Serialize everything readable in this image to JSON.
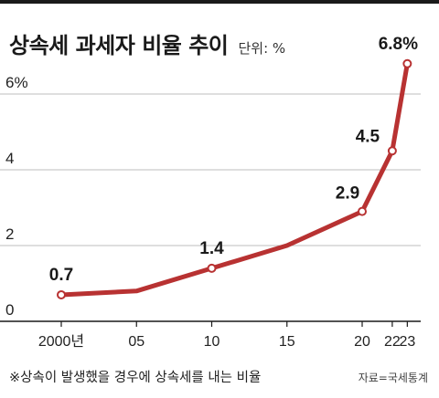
{
  "header": {
    "title": "상속세 과세자 비율 추이",
    "unit": "단위: %"
  },
  "footer": {
    "note": "※상속이 발생했을 경우에 상속세를 내는 비율",
    "source": "자료=국세통계"
  },
  "colors": {
    "line": "#b83232",
    "marker_fill": "#ffffff",
    "grid": "#bdbdbd",
    "axis": "#1a1a1a",
    "text": "#222222"
  },
  "chart_data": {
    "type": "line",
    "title": "상속세 과세자 비율 추이",
    "ylabel": "단위: %",
    "xlabel": "",
    "x": [
      2000,
      2005,
      2010,
      2015,
      2020,
      2022,
      2023
    ],
    "x_tick_labels": [
      "2000년",
      "05",
      "10",
      "15",
      "20",
      "22",
      "23"
    ],
    "y_tick_values": [
      0,
      2,
      4,
      6
    ],
    "y_tick_labels": [
      "0",
      "2",
      "4",
      "6%"
    ],
    "ylim": [
      0,
      7.5
    ],
    "grid": true,
    "series": [
      {
        "values": [
          0.7,
          0.8,
          1.4,
          2.0,
          2.9,
          4.5,
          6.8
        ],
        "data_labels": [
          "0.7",
          "",
          "1.4",
          "",
          "2.9",
          "4.5",
          "6.8%"
        ],
        "markers": [
          true,
          false,
          true,
          false,
          true,
          true,
          true
        ]
      }
    ]
  }
}
